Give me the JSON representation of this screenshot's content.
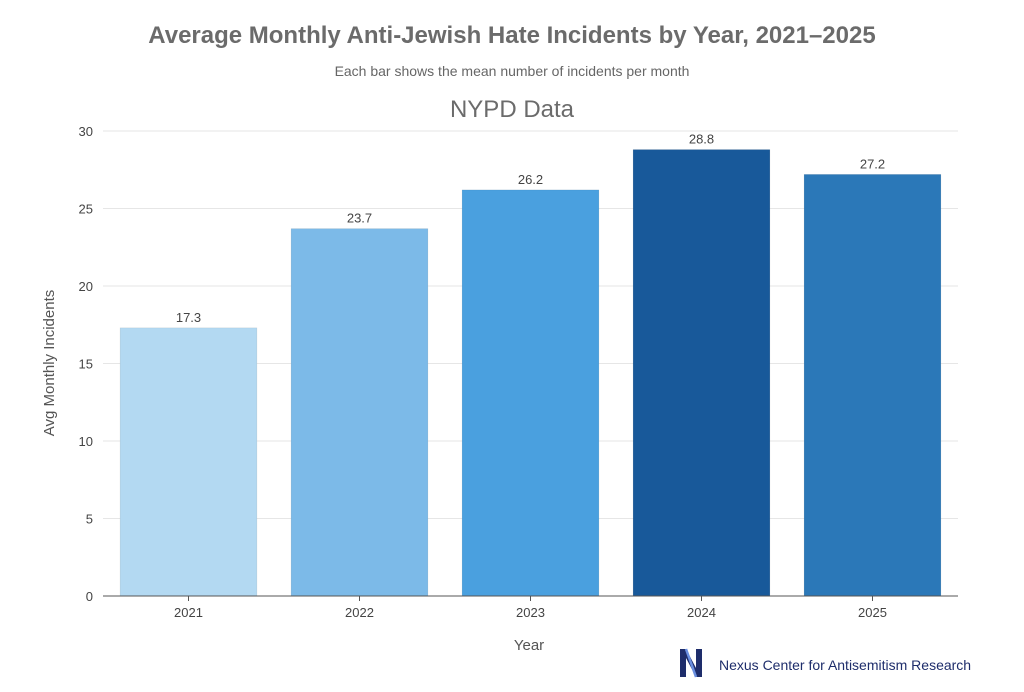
{
  "header": {
    "title": "Average Monthly Anti-Jewish Hate Incidents by Year, 2021–2025",
    "subtitle": "Each bar shows the mean number of incidents per month"
  },
  "footer": {
    "brand_text": "Nexus Center for Antisemitism Research",
    "logo_icon": "nexus-n-logo-icon"
  },
  "chart_data": {
    "type": "bar",
    "title": "NYPD Data",
    "xlabel": "Year",
    "ylabel": "Avg Monthly Incidents",
    "categories": [
      "2021",
      "2022",
      "2023",
      "2024",
      "2025"
    ],
    "values": [
      17.3,
      23.7,
      26.2,
      28.8,
      27.2
    ],
    "data_labels": [
      "17.3",
      "23.7",
      "26.2",
      "28.8",
      "27.2"
    ],
    "colors": [
      "#b3d9f2",
      "#7cbae8",
      "#4aa0df",
      "#18599a",
      "#2b78b8"
    ],
    "ylim": [
      0,
      30
    ],
    "yticks": [
      0,
      5,
      10,
      15,
      20,
      25,
      30
    ],
    "grid": true,
    "legend": false
  }
}
